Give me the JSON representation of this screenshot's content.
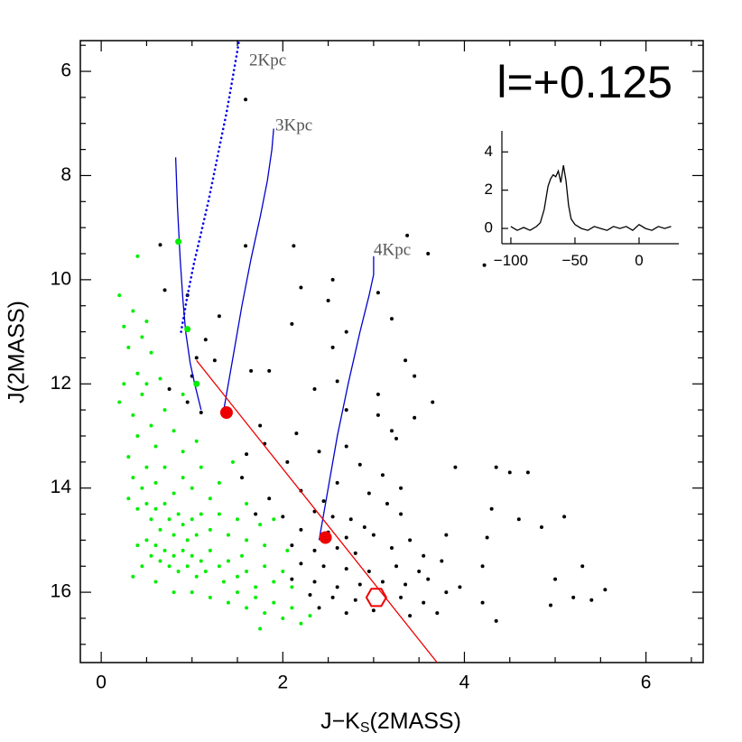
{
  "chart_data": [
    {
      "type": "scatter",
      "title": "l=+0.125",
      "xlabel": [
        "J−K",
        "S",
        "(2MASS)"
      ],
      "ylabel": "J(2MASS)",
      "xlim": [
        -0.23,
        6.63
      ],
      "ylim": [
        5.41,
        17.35
      ],
      "y_inverted": true,
      "xticks": [
        0,
        2,
        4,
        6
      ],
      "yticks": [
        6,
        8,
        10,
        12,
        14,
        16
      ],
      "xticks_minor": [
        0.5,
        1,
        1.5,
        2.5,
        3,
        3.5,
        4.5,
        5,
        5.5,
        6.5
      ],
      "yticks_minor": [
        5.5,
        6.5,
        7,
        7.5,
        8.5,
        9,
        9.5,
        10.5,
        11,
        11.5,
        12.5,
        13,
        13.5,
        14.5,
        15,
        15.5,
        16.5,
        17
      ],
      "series": [
        {
          "color": "#000000",
          "marker": "dot",
          "x": [
            1.59,
            0.65,
            1.59,
            2.12,
            3.37,
            3.6,
            4.22,
            2.55,
            2.2,
            0.7,
            0.95,
            2.5,
            3.05,
            1.3,
            2.1,
            3.2,
            2.7,
            1.15,
            2.55,
            1.05,
            1.25,
            3.35,
            1.65,
            1.85,
            3.45,
            1.0,
            2.6,
            0.75,
            2.35,
            3.05,
            0.95,
            3.65,
            1.1,
            2.7,
            3.05,
            3.45,
            1.75,
            2.15,
            3.2,
            1.8,
            2.7,
            3.25,
            2.4,
            1.6,
            2.05,
            2.85,
            1.55,
            3.1,
            3.9,
            4.35,
            4.5,
            4.7,
            2.6,
            2.2,
            2.95,
            3.3,
            1.85,
            2.45,
            3.15,
            1.7,
            2.0,
            2.35,
            2.55,
            2.75,
            2.9,
            3.3,
            4.3,
            4.6,
            5.1,
            2.2,
            2.5,
            2.7,
            3.0,
            3.4,
            3.8,
            4.25,
            4.85,
            2.1,
            2.35,
            2.6,
            2.8,
            3.2,
            3.55,
            2.2,
            2.45,
            2.7,
            2.95,
            3.25,
            3.5,
            3.75,
            4.2,
            2.1,
            2.35,
            2.6,
            2.85,
            3.1,
            3.35,
            3.6,
            3.95,
            5.0,
            5.3,
            2.3,
            2.55,
            2.8,
            3.3,
            3.55,
            3.8,
            4.2,
            4.95,
            5.2,
            5.4,
            5.55,
            2.4,
            2.7,
            3.0,
            3.4,
            3.7,
            4.35
          ],
          "y": [
            6.54,
            9.33,
            9.35,
            9.35,
            9.15,
            9.5,
            9.72,
            10.0,
            10.15,
            10.2,
            10.3,
            10.4,
            10.25,
            10.7,
            10.85,
            10.75,
            11.0,
            11.15,
            11.3,
            11.5,
            11.55,
            11.55,
            11.75,
            11.75,
            11.85,
            11.85,
            11.95,
            12.1,
            12.1,
            12.2,
            12.35,
            12.35,
            12.55,
            12.5,
            12.6,
            12.65,
            12.8,
            12.95,
            12.9,
            13.15,
            13.2,
            13.05,
            13.3,
            13.35,
            13.5,
            13.55,
            13.8,
            13.75,
            13.6,
            13.6,
            13.7,
            13.7,
            13.9,
            14.05,
            14.1,
            14.0,
            14.2,
            14.25,
            14.3,
            14.5,
            14.55,
            14.45,
            14.55,
            14.6,
            14.75,
            14.5,
            14.4,
            14.6,
            14.55,
            14.8,
            14.85,
            14.95,
            14.9,
            15.0,
            14.9,
            14.95,
            14.75,
            15.1,
            15.2,
            15.15,
            15.25,
            15.15,
            15.3,
            15.45,
            15.5,
            15.55,
            15.6,
            15.5,
            15.6,
            15.4,
            15.5,
            15.75,
            15.8,
            15.9,
            15.85,
            15.8,
            15.85,
            15.75,
            15.9,
            15.75,
            15.5,
            16.05,
            16.1,
            16.15,
            16.1,
            16.2,
            16.0,
            16.2,
            16.25,
            16.1,
            16.15,
            15.95,
            16.3,
            16.4,
            16.35,
            16.45,
            16.4,
            16.55
          ]
        },
        {
          "color": "#00ee00",
          "marker": "dot",
          "x": [
            0.2,
            0.25,
            0.3,
            0.35,
            0.4,
            0.4,
            0.45,
            0.5,
            0.55,
            0.2,
            0.25,
            0.35,
            0.45,
            0.5,
            0.4,
            0.3,
            0.55,
            0.6,
            0.7,
            0.8,
            0.9,
            0.35,
            0.45,
            0.5,
            0.6,
            0.7,
            0.8,
            0.9,
            1.0,
            1.1,
            1.2,
            0.4,
            0.5,
            0.55,
            0.6,
            0.65,
            0.7,
            0.75,
            0.8,
            0.85,
            0.9,
            0.95,
            1.0,
            1.05,
            1.1,
            1.2,
            1.3,
            1.4,
            1.5,
            1.6,
            1.75,
            1.8,
            0.4,
            0.5,
            0.55,
            0.6,
            0.65,
            0.7,
            0.75,
            0.8,
            0.85,
            0.9,
            0.95,
            1.0,
            1.05,
            1.1,
            1.15,
            1.2,
            1.3,
            1.35,
            1.4,
            1.5,
            1.55,
            1.6,
            1.7,
            1.8,
            1.9,
            2.0,
            2.1,
            0.35,
            0.6,
            0.8,
            1.0,
            1.2,
            1.4,
            1.5,
            1.6,
            1.7,
            1.8,
            1.9,
            2.0,
            2.1,
            2.2,
            1.75,
            2.3,
            1.45,
            1.6,
            1.9,
            2.05,
            0.9,
            0.65,
            1.05,
            1.3,
            0.3,
            0.45
          ],
          "y": [
            10.3,
            10.9,
            11.3,
            10.6,
            9.55,
            11.8,
            11.1,
            10.8,
            11.4,
            12.35,
            12.0,
            12.6,
            12.2,
            12.0,
            13.0,
            13.4,
            12.8,
            13.2,
            12.5,
            12.9,
            13.3,
            13.8,
            14.0,
            13.6,
            13.9,
            13.6,
            14.1,
            13.8,
            14.0,
            13.6,
            14.2,
            14.4,
            14.3,
            14.6,
            14.4,
            14.8,
            14.3,
            14.6,
            14.9,
            14.5,
            14.7,
            15.0,
            14.6,
            14.9,
            14.5,
            14.8,
            14.5,
            14.9,
            14.6,
            15.0,
            14.7,
            15.1,
            15.1,
            15.0,
            15.3,
            15.1,
            15.4,
            15.2,
            15.5,
            15.3,
            15.6,
            15.2,
            15.5,
            15.3,
            15.7,
            15.4,
            15.6,
            15.2,
            15.5,
            15.8,
            15.4,
            15.7,
            15.3,
            15.6,
            15.9,
            15.5,
            15.8,
            15.6,
            15.9,
            15.7,
            15.8,
            16.0,
            16.0,
            16.1,
            16.2,
            16.0,
            16.3,
            16.1,
            16.4,
            16.2,
            16.5,
            16.3,
            16.6,
            16.7,
            16.45,
            13.5,
            14.3,
            14.6,
            15.2,
            12.2,
            11.9,
            13.1,
            13.9,
            14.2,
            15.5
          ]
        },
        {
          "name": "2Kpc",
          "color": "#0000ee",
          "line": "dotted",
          "x": [
            0.88,
            0.95,
            1.02,
            1.1,
            1.18,
            1.25,
            1.32,
            1.38,
            1.43,
            1.47,
            1.5,
            1.52
          ],
          "y": [
            11.0,
            10.3,
            9.7,
            9.1,
            8.5,
            7.9,
            7.3,
            6.8,
            6.3,
            5.9,
            5.6,
            5.4
          ]
        },
        {
          "color": "#0000cc",
          "line": "solid",
          "x": [
            0.82,
            0.84,
            0.87,
            0.9,
            0.93,
            0.98,
            1.03,
            1.1
          ],
          "y": [
            7.65,
            8.6,
            9.6,
            10.4,
            11.0,
            11.6,
            12.0,
            12.5
          ]
        },
        {
          "name": "3Kpc",
          "color": "#0000cc",
          "line": "solid",
          "x": [
            1.35,
            1.45,
            1.55,
            1.65,
            1.75,
            1.83,
            1.88,
            1.9
          ],
          "y": [
            12.5,
            11.5,
            10.5,
            9.6,
            8.8,
            8.1,
            7.5,
            7.1
          ]
        },
        {
          "name": "4Kpc",
          "color": "#0000cc",
          "line": "solid",
          "x": [
            2.4,
            2.5,
            2.6,
            2.72,
            2.85,
            2.95,
            3.0,
            3.0
          ],
          "y": [
            15.0,
            14.0,
            13.0,
            12.0,
            11.0,
            10.3,
            9.9,
            9.55
          ]
        },
        {
          "color": "#ee0000",
          "line": "solid",
          "x": [
            1.05,
            3.7
          ],
          "y": [
            11.55,
            17.35
          ]
        },
        {
          "color": "#ee0000",
          "marker": "bigdot",
          "x": [
            1.38,
            2.47
          ],
          "y": [
            12.55,
            14.95
          ]
        },
        {
          "color": "#ee0000",
          "marker": "hexagon",
          "x": [
            3.03
          ],
          "y": [
            16.1
          ]
        },
        {
          "color": "#00ee00",
          "marker": "mediumdot",
          "x": [
            0.85,
            0.95,
            1.05
          ],
          "y": [
            9.27,
            10.95,
            12.0
          ]
        }
      ]
    },
    {
      "type": "line",
      "xlim": [
        -107,
        31
      ],
      "ylim": [
        -0.8,
        5.1
      ],
      "xticks": [
        {
          "value": -100,
          "label": "−100"
        },
        {
          "value": -50,
          "label": "−50"
        },
        0
      ],
      "yticks": [
        0,
        2,
        4
      ],
      "series": [
        {
          "color": "#000000",
          "line": "solid",
          "x": [
            -100,
            -95,
            -90,
            -85,
            -80,
            -77,
            -74,
            -71,
            -69,
            -67,
            -65,
            -63,
            -61,
            -59,
            -57,
            -55,
            -53,
            -50,
            -45,
            -40,
            -35,
            -30,
            -25,
            -20,
            -15,
            -10,
            -5,
            0,
            5,
            10,
            15,
            20,
            25
          ],
          "y": [
            0.1,
            -0.1,
            0.05,
            -0.1,
            0.1,
            0.3,
            1.0,
            2.2,
            2.6,
            2.8,
            2.7,
            3.0,
            2.4,
            3.3,
            2.5,
            1.2,
            0.5,
            0.2,
            0.0,
            -0.1,
            0.1,
            0.0,
            -0.1,
            0.1,
            0.0,
            0.1,
            -0.1,
            0.2,
            0.0,
            -0.1,
            0.1,
            0.0,
            0.1
          ]
        }
      ]
    }
  ]
}
